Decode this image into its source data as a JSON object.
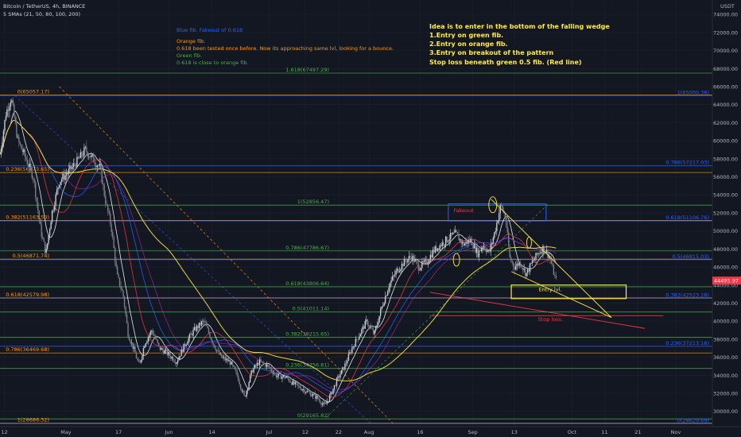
{
  "header": {
    "symbol": "Bitcoin / TetherUS, 4h, BINANCE",
    "indicator": "5 SMAs (21, 50, 80, 100, 200)",
    "currency": "USDT"
  },
  "colors": {
    "background": "#131722",
    "grid": "#1e222d",
    "candle_up": "#c9cbd2",
    "candle_down": "#7a7e88",
    "fib_blue": "#2962ff",
    "fib_orange": "#ff9800",
    "fib_green": "#4caf50",
    "stop": "#f23645",
    "wedge": "#ffeb3b",
    "badge": "#f23645"
  },
  "notes": {
    "blue": [
      "Blue fib. Fakeout of 0.618"
    ],
    "orange": [
      "Orange fib.",
      "0.618 been tested once before. Now its approaching same lvl, looking for a bounce."
    ],
    "green": [
      "Green fib.",
      "0.618 is close to orange fib."
    ]
  },
  "idea": [
    "Idea is to enter in the bottom of the falling wedge",
    "1.Entry on green fib.",
    "2.Entry on orange fib.",
    "3.Entry on breakout of the pattern",
    "",
    "Stop loss beneath green 0.5 fib. (Red line)"
  ],
  "annotations": {
    "fakeout": "Fakeout",
    "entry": "Entry lvl.",
    "stop": "Stop loss."
  },
  "current_price": "44495.97",
  "chart_data": {
    "type": "candlestick",
    "title": "Bitcoin / TetherUS, 4h, BINANCE",
    "ylim": [
      28300,
      75600
    ],
    "y_ticks": [
      30000,
      32000,
      34000,
      36000,
      38000,
      40000,
      42000,
      44000,
      46000,
      48000,
      50000,
      52000,
      54000,
      56000,
      58000,
      60000,
      62000,
      64000,
      66000,
      68000,
      70000,
      72000,
      74000
    ],
    "x_ticks": [
      {
        "label": "12",
        "pos": 0.006
      },
      {
        "label": "May",
        "pos": 0.089
      },
      {
        "label": "17",
        "pos": 0.16
      },
      {
        "label": "Jun",
        "pos": 0.228
      },
      {
        "label": "14",
        "pos": 0.286
      },
      {
        "label": "Jul",
        "pos": 0.363
      },
      {
        "label": "12",
        "pos": 0.412
      },
      {
        "label": "22",
        "pos": 0.457
      },
      {
        "label": "Aug",
        "pos": 0.498
      },
      {
        "label": "16",
        "pos": 0.567
      },
      {
        "label": "Sep",
        "pos": 0.638
      },
      {
        "label": "13",
        "pos": 0.694
      },
      {
        "label": "Oct",
        "pos": 0.772
      },
      {
        "label": "11",
        "pos": 0.816
      },
      {
        "label": "21",
        "pos": 0.861
      },
      {
        "label": "Nov",
        "pos": 0.912
      }
    ],
    "price_path": [
      [
        0.0,
        58500
      ],
      [
        0.008,
        63000
      ],
      [
        0.015,
        64800
      ],
      [
        0.024,
        60000
      ],
      [
        0.035,
        58000
      ],
      [
        0.045,
        56000
      ],
      [
        0.055,
        50000
      ],
      [
        0.062,
        47500
      ],
      [
        0.07,
        52000
      ],
      [
        0.08,
        55500
      ],
      [
        0.092,
        56500
      ],
      [
        0.105,
        57800
      ],
      [
        0.115,
        59000
      ],
      [
        0.125,
        58000
      ],
      [
        0.135,
        57000
      ],
      [
        0.143,
        53000
      ],
      [
        0.15,
        50500
      ],
      [
        0.158,
        45000
      ],
      [
        0.166,
        43000
      ],
      [
        0.173,
        38500
      ],
      [
        0.18,
        37000
      ],
      [
        0.188,
        35000
      ],
      [
        0.195,
        37500
      ],
      [
        0.205,
        39000
      ],
      [
        0.215,
        37000
      ],
      [
        0.225,
        36500
      ],
      [
        0.238,
        35500
      ],
      [
        0.25,
        37500
      ],
      [
        0.262,
        39000
      ],
      [
        0.275,
        40000
      ],
      [
        0.288,
        37500
      ],
      [
        0.298,
        36000
      ],
      [
        0.31,
        35500
      ],
      [
        0.32,
        34000
      ],
      [
        0.33,
        31500
      ],
      [
        0.34,
        34500
      ],
      [
        0.35,
        35500
      ],
      [
        0.362,
        35000
      ],
      [
        0.372,
        34000
      ],
      [
        0.385,
        33800
      ],
      [
        0.397,
        33000
      ],
      [
        0.408,
        32500
      ],
      [
        0.418,
        32000
      ],
      [
        0.428,
        31500
      ],
      [
        0.438,
        30600
      ],
      [
        0.446,
        31800
      ],
      [
        0.455,
        33500
      ],
      [
        0.465,
        35000
      ],
      [
        0.475,
        37000
      ],
      [
        0.485,
        38500
      ],
      [
        0.495,
        40000
      ],
      [
        0.505,
        38500
      ],
      [
        0.515,
        41500
      ],
      [
        0.525,
        44000
      ],
      [
        0.535,
        45500
      ],
      [
        0.545,
        46500
      ],
      [
        0.555,
        47200
      ],
      [
        0.565,
        46000
      ],
      [
        0.575,
        46500
      ],
      [
        0.585,
        47800
      ],
      [
        0.595,
        48500
      ],
      [
        0.605,
        49200
      ],
      [
        0.615,
        49700
      ],
      [
        0.625,
        48500
      ],
      [
        0.635,
        49000
      ],
      [
        0.645,
        47500
      ],
      [
        0.652,
        48500
      ],
      [
        0.66,
        47500
      ],
      [
        0.668,
        50000
      ],
      [
        0.676,
        52900
      ],
      [
        0.682,
        51500
      ],
      [
        0.688,
        47000
      ],
      [
        0.694,
        46000
      ],
      [
        0.702,
        46500
      ],
      [
        0.71,
        45200
      ],
      [
        0.718,
        46500
      ],
      [
        0.726,
        47500
      ],
      [
        0.734,
        48200
      ],
      [
        0.742,
        47000
      ],
      [
        0.75,
        44500
      ]
    ],
    "fib_levels": [
      {
        "label": "1.618(67497.29)",
        "value": 67497.29,
        "color": "green",
        "side": "mid"
      },
      {
        "label": "0(65057.17)",
        "value": 65057.17,
        "color": "orange",
        "side": "left"
      },
      {
        "label": "1(65000.36)",
        "value": 65000.36,
        "color": "blue",
        "side": "right"
      },
      {
        "label": "0.786(57217.03)",
        "value": 57217.03,
        "color": "blue",
        "side": "right"
      },
      {
        "label": "0.236(56473.65)",
        "value": 56473.65,
        "color": "orange",
        "side": "left"
      },
      {
        "label": "1(52856.47)",
        "value": 52856.47,
        "color": "green",
        "side": "mid"
      },
      {
        "label": "0.382(51163.50)",
        "value": 51163.5,
        "color": "orange",
        "side": "left"
      },
      {
        "label": "0.618(51106.76)",
        "value": 51106.76,
        "color": "blue",
        "side": "right"
      },
      {
        "label": "0.786(47786.67)",
        "value": 47786.67,
        "color": "green",
        "side": "mid"
      },
      {
        "label": "0.5(46871.74)",
        "value": 46871.74,
        "color": "orange",
        "side": "left"
      },
      {
        "label": "0.5(46815.03)",
        "value": 46815.03,
        "color": "blue",
        "side": "right"
      },
      {
        "label": "0.618(43806.64)",
        "value": 43806.64,
        "color": "green",
        "side": "mid"
      },
      {
        "label": "0.618(42579.98)",
        "value": 42579.98,
        "color": "orange",
        "side": "left"
      },
      {
        "label": "0.382(42523.28)",
        "value": 42523.28,
        "color": "blue",
        "side": "right"
      },
      {
        "label": "0.5(41011.14)",
        "value": 41011.14,
        "color": "green",
        "side": "mid"
      },
      {
        "label": "0.382(38215.65)",
        "value": 38215.65,
        "color": "green",
        "side": "mid"
      },
      {
        "label": "0.236(37213.16)",
        "value": 37213.16,
        "color": "blue",
        "side": "right"
      },
      {
        "label": "0.786(36469.68)",
        "value": 36469.68,
        "color": "orange",
        "side": "left"
      },
      {
        "label": "0.236(34756.81)",
        "value": 34756.81,
        "color": "green",
        "side": "mid"
      },
      {
        "label": "0(29165.82)",
        "value": 29165.82,
        "color": "green",
        "side": "mid"
      },
      {
        "label": "1(28686.32)",
        "value": 28686.32,
        "color": "orange",
        "side": "left"
      },
      {
        "label": "0(28629.69)",
        "value": 28629.69,
        "color": "blue",
        "side": "right"
      }
    ]
  }
}
